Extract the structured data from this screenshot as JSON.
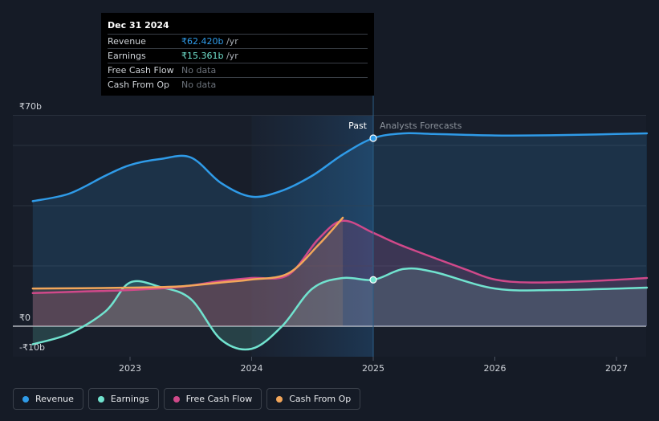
{
  "tooltip": {
    "date": "Dec 31 2024",
    "rows": [
      {
        "label": "Revenue",
        "value": "₹62.420b",
        "unit": " /yr",
        "color": "#2f9be8"
      },
      {
        "label": "Earnings",
        "value": "₹15.361b",
        "unit": " /yr",
        "color": "#71e3cf"
      },
      {
        "label": "Free Cash Flow",
        "value": "No data",
        "unit": "",
        "color": ""
      },
      {
        "label": "Cash From Op",
        "value": "No data",
        "unit": "",
        "color": ""
      }
    ]
  },
  "chart_data": {
    "type": "line",
    "ylim": [
      -10,
      70
    ],
    "xlim": [
      2022.1,
      2027.25
    ],
    "y_tick_labels": [
      {
        "value": 70,
        "label": "₹70b"
      },
      {
        "value": 0,
        "label": "₹0"
      },
      {
        "value": -10,
        "label": "-₹10b"
      }
    ],
    "x_ticks": [
      {
        "value": 2023,
        "label": "2023"
      },
      {
        "value": 2024,
        "label": "2024"
      },
      {
        "value": 2025,
        "label": "2025"
      },
      {
        "value": 2026,
        "label": "2026"
      },
      {
        "value": 2027,
        "label": "2027"
      }
    ],
    "gridlines": [
      70,
      60,
      40,
      20,
      0
    ],
    "past_label": "Past",
    "forecast_label": "Analysts Forecasts",
    "divider_x": 2025,
    "highlight_start": 2024,
    "series": [
      {
        "name": "Revenue",
        "color": "#2f9be8",
        "points": [
          [
            2022.2,
            41.5
          ],
          [
            2022.5,
            44
          ],
          [
            2022.8,
            50
          ],
          [
            2023.0,
            53.5
          ],
          [
            2023.25,
            55.5
          ],
          [
            2023.5,
            56
          ],
          [
            2023.75,
            47.5
          ],
          [
            2024.0,
            43
          ],
          [
            2024.25,
            45
          ],
          [
            2024.5,
            50
          ],
          [
            2024.75,
            57
          ],
          [
            2025.0,
            62.4
          ],
          [
            2025.25,
            64
          ],
          [
            2025.5,
            63.8
          ],
          [
            2026.0,
            63.3
          ],
          [
            2026.5,
            63.4
          ],
          [
            2027.25,
            64
          ]
        ],
        "highlight": {
          "x": 2025.0,
          "y": 62.4
        }
      },
      {
        "name": "Earnings",
        "color": "#71e3cf",
        "points": [
          [
            2022.2,
            -6
          ],
          [
            2022.5,
            -2.5
          ],
          [
            2022.8,
            5
          ],
          [
            2023.0,
            14.5
          ],
          [
            2023.25,
            13
          ],
          [
            2023.5,
            9
          ],
          [
            2023.75,
            -4.5
          ],
          [
            2024.0,
            -7.5
          ],
          [
            2024.25,
            0
          ],
          [
            2024.5,
            12.5
          ],
          [
            2024.75,
            16
          ],
          [
            2025.0,
            15.4
          ],
          [
            2025.25,
            19
          ],
          [
            2025.5,
            18
          ],
          [
            2026.0,
            12.5
          ],
          [
            2026.5,
            12
          ],
          [
            2027.25,
            12.8
          ]
        ],
        "highlight": {
          "x": 2025.0,
          "y": 15.4
        }
      },
      {
        "name": "Free Cash Flow",
        "color": "#d0498a",
        "points": [
          [
            2022.2,
            11
          ],
          [
            2022.6,
            11.5
          ],
          [
            2023.0,
            12
          ],
          [
            2023.4,
            13
          ],
          [
            2023.75,
            15
          ],
          [
            2024.0,
            16
          ],
          [
            2024.3,
            17
          ],
          [
            2024.55,
            29
          ],
          [
            2024.75,
            35
          ],
          [
            2025.0,
            31
          ],
          [
            2025.25,
            26.5
          ],
          [
            2025.75,
            19
          ],
          [
            2026.0,
            15.5
          ],
          [
            2026.3,
            14.5
          ],
          [
            2026.8,
            15
          ],
          [
            2027.25,
            16
          ]
        ]
      },
      {
        "name": "Cash From Op",
        "color": "#f2a65a",
        "points": [
          [
            2022.2,
            12.5
          ],
          [
            2022.6,
            12.6
          ],
          [
            2023.0,
            12.8
          ],
          [
            2023.4,
            13.2
          ],
          [
            2023.75,
            14.5
          ],
          [
            2024.0,
            15.5
          ],
          [
            2024.3,
            17.5
          ],
          [
            2024.55,
            27
          ],
          [
            2024.75,
            36
          ]
        ]
      }
    ]
  },
  "legend": [
    {
      "label": "Revenue",
      "color": "#2f9be8"
    },
    {
      "label": "Earnings",
      "color": "#71e3cf"
    },
    {
      "label": "Free Cash Flow",
      "color": "#d0498a"
    },
    {
      "label": "Cash From Op",
      "color": "#f2a65a"
    }
  ]
}
